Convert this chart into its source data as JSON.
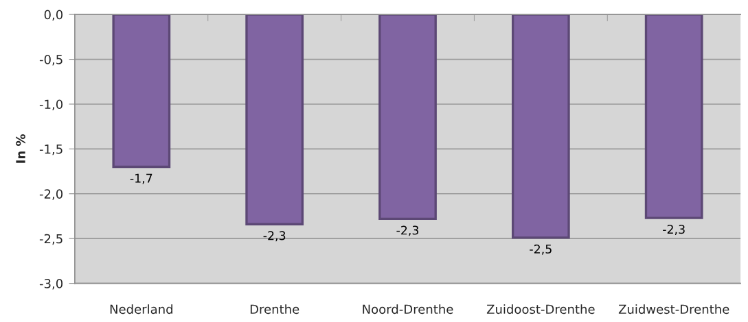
{
  "chart_data": {
    "type": "bar",
    "ylabel": "In %",
    "categories": [
      "Nederland",
      "Drenthe",
      "Noord-Drenthe",
      "Zuidoost-Drenthe",
      "Zuidwest-Drenthe"
    ],
    "series": [
      {
        "color": "#8064a2",
        "values": [
          -1.7,
          -2.34,
          -2.28,
          -2.49,
          -2.27
        ],
        "value_labels": [
          "-1,7",
          "-2,3",
          "-2,3",
          "-2,5",
          "-2,3"
        ]
      }
    ],
    "ylim": [
      -3,
      0
    ],
    "yticks": [
      {
        "value": -3,
        "label": "-3,0"
      },
      {
        "value": -2.5,
        "label": "-2,5"
      },
      {
        "value": -2,
        "label": "-2,0"
      },
      {
        "value": -1.5,
        "label": "-1,5"
      },
      {
        "value": -1,
        "label": "-1,0"
      },
      {
        "value": -0.5,
        "label": "-0,5"
      },
      {
        "value": 0,
        "label": "0,0"
      }
    ],
    "grid": "y"
  }
}
